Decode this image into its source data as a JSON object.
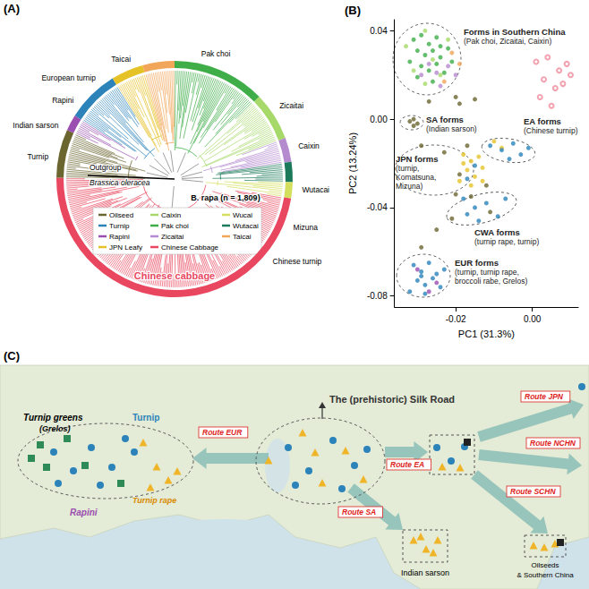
{
  "panel_a": {
    "label": "(A)",
    "outgroup": "Outgroup",
    "outgroup_species": "Brassica oleracea",
    "ingroup": "B. rapa (n = 1,809)",
    "main_clade": "Chinese cabbage",
    "groups": [
      {
        "name": "Oilseed",
        "color": "#6b6530"
      },
      {
        "name": "Caixin",
        "color": "#a6d96a"
      },
      {
        "name": "Wucai",
        "color": "#d4df5e"
      },
      {
        "name": "Turnip",
        "color": "#2b83ba"
      },
      {
        "name": "Pak choi",
        "color": "#3fae49"
      },
      {
        "name": "Wutacai",
        "color": "#1b7a5a"
      },
      {
        "name": "Rapini",
        "color": "#9b4fb0"
      },
      {
        "name": "Zicaitai",
        "color": "#b58bd0"
      },
      {
        "name": "Taicai",
        "color": "#f2a65a"
      },
      {
        "name": "JPN Leafy",
        "color": "#e6c229"
      },
      {
        "name": "Chinese Cabbage",
        "color": "#e8475f"
      }
    ],
    "ring": [
      {
        "name": "Pak choi",
        "samples": 230
      },
      {
        "name": "Caixin",
        "samples": 120
      },
      {
        "name": "Zicaitai",
        "samples": 60
      },
      {
        "name": "Wutacai",
        "samples": 50
      },
      {
        "name": "Wucai",
        "samples": 40
      },
      {
        "name": "Chinese Cabbage",
        "samples": 860
      },
      {
        "name": "Oilseed",
        "samples": 120
      },
      {
        "name": "Rapini",
        "samples": 40
      },
      {
        "name": "Turnip",
        "samples": 130
      },
      {
        "name": "JPN Leafy",
        "samples": 80
      },
      {
        "name": "Taicai",
        "samples": 79
      }
    ],
    "ring_labels": [
      "Turnip",
      "Indian sarson",
      "Rapini",
      "European turnip",
      "Taicai",
      "Pak choi",
      "Zicaitai",
      "Caixin",
      "Wutacai",
      "Mizuna",
      "Chinese turnip"
    ]
  },
  "chart_data": {
    "type": "scatter",
    "title": "(B)",
    "x_label": "PC1 (31.3%)",
    "y_label": "PC2 (13.24%)",
    "xlim": [
      -0.036,
      0.012
    ],
    "ylim": [
      -0.085,
      0.045
    ],
    "xticks": [
      -0.02,
      {
        "value": 0,
        "label": "0.00"
      }
    ],
    "yticks": [
      0.04,
      {
        "value": 0,
        "label": "0.00"
      },
      -0.04,
      -0.08
    ],
    "grid": false,
    "series": [
      {
        "name": "Pak choi",
        "color": "#3fae49",
        "marker": "circle",
        "values": [
          [
            -0.031,
            0.036
          ],
          [
            -0.029,
            0.038
          ],
          [
            -0.027,
            0.034
          ],
          [
            -0.025,
            0.037
          ],
          [
            -0.03,
            0.031
          ],
          [
            -0.028,
            0.029
          ],
          [
            -0.026,
            0.031
          ],
          [
            -0.024,
            0.028
          ],
          [
            -0.022,
            0.032
          ],
          [
            -0.032,
            0.026
          ],
          [
            -0.029,
            0.024
          ],
          [
            -0.027,
            0.022
          ],
          [
            -0.025,
            0.025
          ],
          [
            -0.023,
            0.021
          ],
          [
            -0.021,
            0.026
          ],
          [
            -0.03,
            0.019
          ],
          [
            -0.026,
            0.017
          ],
          [
            -0.024,
            0.033
          ]
        ]
      },
      {
        "name": "Caixin",
        "color": "#a6d96a",
        "marker": "circle",
        "values": [
          [
            -0.028,
            0.04
          ],
          [
            -0.033,
            0.033
          ],
          [
            -0.026,
            0.027
          ],
          [
            -0.022,
            0.036
          ],
          [
            -0.031,
            0.022
          ],
          [
            -0.028,
            0.016
          ],
          [
            -0.024,
            0.02
          ]
        ]
      },
      {
        "name": "Zicaitai",
        "color": "#b58bd0",
        "marker": "circle",
        "values": [
          [
            -0.027,
            0.025
          ],
          [
            -0.025,
            0.021
          ],
          [
            -0.022,
            0.024
          ],
          [
            -0.029,
            0.02
          ],
          [
            -0.02,
            0.02
          ],
          [
            -0.024,
            0.015
          ]
        ]
      },
      {
        "name": "Taicai",
        "color": "#f2a65a",
        "marker": "circle",
        "values": [
          [
            -0.021,
            0.03
          ],
          [
            -0.019,
            0.025
          ],
          [
            -0.023,
            0.017
          ]
        ]
      },
      {
        "name": "Oilseed",
        "color": "#6b6530",
        "marker": "circle",
        "values": [
          [
            -0.032,
            -0.001
          ],
          [
            -0.031,
            -0.003
          ],
          [
            -0.03,
            -0.002
          ],
          [
            -0.031,
            0.0
          ],
          [
            -0.027,
            0.008
          ],
          [
            -0.02,
            0.01
          ],
          [
            -0.019,
            0.007
          ],
          [
            -0.017,
            -0.012
          ],
          [
            -0.015,
            0.009
          ],
          [
            -0.029,
            -0.012
          ],
          [
            -0.023,
            -0.015
          ],
          [
            -0.02,
            -0.034
          ],
          [
            -0.019,
            -0.025
          ],
          [
            -0.016,
            -0.035
          ],
          [
            -0.012,
            -0.03
          ],
          [
            -0.021,
            -0.045
          ],
          [
            -0.025,
            -0.05
          ],
          [
            -0.029,
            -0.058
          ],
          [
            -0.011,
            -0.042
          ]
        ]
      },
      {
        "name": "JPN Leafy",
        "color": "#e6c229",
        "marker": "circle",
        "values": [
          [
            -0.018,
            -0.016
          ],
          [
            -0.016,
            -0.019
          ],
          [
            -0.014,
            -0.017
          ],
          [
            -0.017,
            -0.023
          ],
          [
            -0.015,
            -0.026
          ],
          [
            -0.013,
            -0.022
          ],
          [
            -0.019,
            -0.028
          ],
          [
            -0.016,
            -0.03
          ],
          [
            -0.013,
            -0.028
          ],
          [
            -0.018,
            -0.02
          ],
          [
            -0.01,
            -0.01
          ],
          [
            -0.008,
            -0.013
          ]
        ]
      },
      {
        "name": "Turnip",
        "color": "#2b83ba",
        "marker": "circle",
        "values": [
          [
            -0.031,
            -0.066
          ],
          [
            -0.029,
            -0.069
          ],
          [
            -0.027,
            -0.065
          ],
          [
            -0.025,
            -0.07
          ],
          [
            -0.03,
            -0.073
          ],
          [
            -0.028,
            -0.075
          ],
          [
            -0.026,
            -0.072
          ],
          [
            -0.024,
            -0.076
          ],
          [
            -0.032,
            -0.078
          ],
          [
            -0.028,
            -0.079
          ],
          [
            -0.023,
            -0.068
          ],
          [
            -0.029,
            -0.071
          ],
          [
            -0.018,
            -0.036
          ],
          [
            -0.015,
            -0.04
          ],
          [
            -0.012,
            -0.038
          ],
          [
            -0.009,
            -0.044
          ],
          [
            -0.014,
            -0.046
          ],
          [
            -0.017,
            -0.043
          ],
          [
            -0.007,
            -0.036
          ],
          [
            -0.011,
            -0.012
          ],
          [
            -0.008,
            -0.014
          ],
          [
            -0.005,
            -0.011
          ],
          [
            -0.003,
            -0.016
          ],
          [
            -0.006,
            -0.018
          ],
          [
            -0.001,
            -0.013
          ],
          [
            -0.015,
            -0.021
          ],
          [
            -0.017,
            -0.027
          ]
        ]
      },
      {
        "name": "Rapini",
        "color": "#9b4fb0",
        "marker": "circle",
        "values": [
          [
            -0.027,
            -0.078
          ],
          [
            -0.03,
            -0.068
          ],
          [
            -0.025,
            -0.074
          ]
        ]
      },
      {
        "name": "Chinese Cabbage",
        "color": "#f08a9a",
        "marker": "open_circle",
        "values": [
          [
            0.001,
            0.026
          ],
          [
            0.004,
            0.028
          ],
          [
            0.007,
            0.022
          ],
          [
            0.003,
            0.018
          ],
          [
            0.006,
            0.014
          ],
          [
            0.009,
            0.025
          ],
          [
            0.002,
            0.01
          ],
          [
            0.008,
            0.016
          ],
          [
            0.005,
            0.006
          ],
          [
            0.01,
            0.02
          ]
        ]
      }
    ],
    "annotations": [
      {
        "title": "Forms in Southern China",
        "lines": [
          "(Pak choi, Zicaitai, Caixin)"
        ]
      },
      {
        "title": "SA forms",
        "lines": [
          "(Indian sarson)"
        ]
      },
      {
        "title": "JPN forms",
        "lines": [
          "(turnip,",
          "Komatsuna,",
          "Mizuna)"
        ]
      },
      {
        "title": "EA forms",
        "lines": [
          "(Chinese turnip)"
        ]
      },
      {
        "title": "CWA forms",
        "lines": [
          "(turnip rape, turnip)"
        ]
      },
      {
        "title": "EUR forms",
        "lines": [
          "(turnip, turnip rape,",
          "broccoli rabe, Grelos)"
        ]
      }
    ]
  },
  "panel_c": {
    "label": "(C)",
    "silk_road": "The (prehistoric) Silk Road",
    "routes": [
      "Route EUR",
      "Route EA",
      "Route SA",
      "Route JPN",
      "Route NCHN",
      "Route SCHN"
    ],
    "places": [
      "Turnip greens",
      "(Grelos)",
      "Turnip",
      "Rapini",
      "Turnip rape",
      "Indian sarson",
      "Oilseeds",
      "& Southern China"
    ]
  }
}
